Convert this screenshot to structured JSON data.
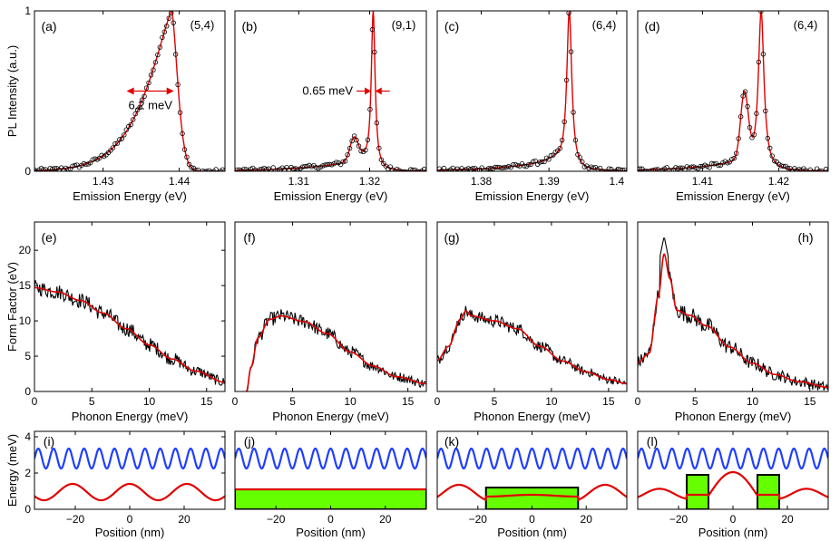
{
  "chart_data": [
    {
      "type": "scatter",
      "panel": "(a)",
      "chirality": "(5,4)",
      "xlabel": "Emission Energy (eV)",
      "ylabel": "PL Intensity (a.u.)",
      "xlim": [
        1.421,
        1.446
      ],
      "ylim": [
        0,
        1
      ],
      "xticks": [
        "1.43",
        "1.44"
      ],
      "xtick_values": [
        1.43,
        1.44
      ],
      "yticks": [
        "0",
        "1"
      ],
      "ytick_values": [
        0,
        1
      ],
      "peak": 1.439,
      "model": "asym",
      "wl": 0.0042,
      "wr": 0.0009,
      "annotation": "6.2 meV",
      "fwhm_range": [
        1.4331,
        1.4393
      ],
      "arrow_y": 0.5
    },
    {
      "type": "scatter",
      "panel": "(b)",
      "chirality": "(9,1)",
      "xlabel": "Emission Energy (eV)",
      "ylabel": "",
      "xlim": [
        1.301,
        1.328
      ],
      "ylim": [
        0,
        1
      ],
      "xticks": [
        "1.31",
        "1.32"
      ],
      "xtick_values": [
        1.31,
        1.32
      ],
      "yticks": [],
      "ytick_values": [],
      "peak": 1.3205,
      "model": "narrow",
      "w": 0.00033,
      "shoulder": {
        "e": 1.3178,
        "w": 0.0008,
        "a": 0.14
      },
      "annotation": "0.65 meV",
      "fwhm_range": [
        1.3202,
        1.3208
      ],
      "arrow_y": 0.5
    },
    {
      "type": "scatter",
      "panel": "(c)",
      "chirality": "(6,4)",
      "xlabel": "Emission Energy (eV)",
      "ylabel": "",
      "xlim": [
        1.3735,
        1.4015
      ],
      "ylim": [
        0,
        1
      ],
      "xticks": [
        "1.38",
        "1.39",
        "1.4"
      ],
      "xtick_values": [
        1.38,
        1.39,
        1.4
      ],
      "yticks": [],
      "ytick_values": [],
      "peak": 1.393,
      "model": "narrow",
      "w": 0.00045,
      "annotation": ""
    },
    {
      "type": "scatter",
      "panel": "(d)",
      "chirality": "(6,4)",
      "xlabel": "Emission Energy (eV)",
      "ylabel": "",
      "xlim": [
        1.4015,
        1.4265
      ],
      "ylim": [
        0,
        1
      ],
      "xticks": [
        "1.41",
        "1.42"
      ],
      "xtick_values": [
        1.41,
        1.42
      ],
      "yticks": [],
      "ytick_values": [],
      "peak": 1.4177,
      "model": "narrow",
      "w": 0.00045,
      "shoulder": {
        "e": 1.4155,
        "w": 0.0007,
        "a": 0.4
      },
      "annotation": ""
    },
    {
      "type": "line",
      "panel": "(e)",
      "xlabel": "Phonon Energy (meV)",
      "ylabel": "Form Factor (eV)",
      "xlim": [
        0,
        16.6
      ],
      "ylim": [
        0,
        24
      ],
      "xticks": [
        "0",
        "5",
        "10",
        "15"
      ],
      "xtick_values": [
        0,
        5,
        10,
        15
      ],
      "yticks": [
        "0",
        "5",
        "10",
        "15",
        "20"
      ],
      "ytick_values": [
        0,
        5,
        10,
        15,
        20
      ],
      "fit_points": [
        [
          0,
          14.7
        ],
        [
          2,
          14.1
        ],
        [
          4,
          12.9
        ],
        [
          6,
          11.1
        ],
        [
          8,
          8.9
        ],
        [
          10,
          6.6
        ],
        [
          12,
          4.6
        ],
        [
          14,
          2.9
        ],
        [
          16.6,
          1.3
        ]
      ],
      "noise": 1.1
    },
    {
      "type": "line",
      "panel": "(f)",
      "xlabel": "Phonon Energy (meV)",
      "ylabel": "",
      "xlim": [
        0,
        16.6
      ],
      "ylim": [
        0,
        24
      ],
      "xticks": [
        "0",
        "5",
        "10",
        "15"
      ],
      "xtick_values": [
        0,
        5,
        10,
        15
      ],
      "yticks": [],
      "ytick_values": [],
      "fit_points": [
        [
          1,
          0
        ],
        [
          1.4,
          3.5
        ],
        [
          2,
          7.6
        ],
        [
          3,
          10.2
        ],
        [
          4,
          10.7
        ],
        [
          6,
          9.9
        ],
        [
          8,
          8.2
        ],
        [
          10,
          5.6
        ],
        [
          12,
          3.6
        ],
        [
          14,
          2.1
        ],
        [
          16.6,
          1.1
        ]
      ],
      "noise": 1.0,
      "cutoff": 1
    },
    {
      "type": "line",
      "panel": "(g)",
      "xlabel": "Phonon Energy (meV)",
      "ylabel": "",
      "xlim": [
        0,
        16.6
      ],
      "ylim": [
        0,
        24
      ],
      "xticks": [
        "0",
        "5",
        "10",
        "15"
      ],
      "xtick_values": [
        0,
        5,
        10,
        15
      ],
      "yticks": [],
      "ytick_values": [],
      "fit_points": [
        [
          0,
          4.4
        ],
        [
          1,
          6.4
        ],
        [
          2,
          10.2
        ],
        [
          2.5,
          11.4
        ],
        [
          3,
          10.7
        ],
        [
          5,
          10
        ],
        [
          7,
          8.9
        ],
        [
          9,
          6.4
        ],
        [
          11,
          4.3
        ],
        [
          13,
          2.8
        ],
        [
          15,
          1.7
        ],
        [
          16.6,
          1.1
        ]
      ],
      "noise": 0.9
    },
    {
      "type": "line",
      "panel": "(h)",
      "xlabel": "Phonon Energy (meV)",
      "ylabel": "",
      "xlim": [
        0,
        16.6
      ],
      "ylim": [
        0,
        24
      ],
      "xticks": [
        "0",
        "5",
        "10",
        "15"
      ],
      "xtick_values": [
        0,
        5,
        10,
        15
      ],
      "yticks": [],
      "ytick_values": [],
      "fit_points": [
        [
          0,
          4.1
        ],
        [
          1,
          5.4
        ],
        [
          1.8,
          13.5
        ],
        [
          2.3,
          19.5
        ],
        [
          2.8,
          16
        ],
        [
          3.4,
          11.5
        ],
        [
          4.5,
          10.8
        ],
        [
          6,
          9.3
        ],
        [
          8,
          6.3
        ],
        [
          10,
          4
        ],
        [
          12,
          2.4
        ],
        [
          14,
          1.4
        ],
        [
          16.6,
          0.6
        ]
      ],
      "noise": 1.2,
      "spike": 22
    },
    {
      "type": "line",
      "panel": "(i)",
      "xlabel": "Position (nm)",
      "ylabel": "Energy (meV)",
      "xlim": [
        -35,
        35
      ],
      "ylim": [
        0,
        4.3
      ],
      "xticks": [
        "−20",
        "0",
        "20"
      ],
      "xtick_values": [
        -20,
        0,
        20
      ],
      "yticks": [
        "0",
        "2",
        "4"
      ],
      "ytick_values": [
        0,
        2,
        4
      ],
      "blue_wave": {
        "center": 2.8,
        "amp": 0.55,
        "period": 5.6
      },
      "red_wave": {
        "center": 0.95,
        "amp": 0.45,
        "period": 21
      },
      "wells": []
    },
    {
      "type": "line",
      "panel": "(j)",
      "xlabel": "Position (nm)",
      "ylabel": "",
      "xlim": [
        -35,
        35
      ],
      "ylim": [
        0,
        4.3
      ],
      "xticks": [
        "−20",
        "0",
        "20"
      ],
      "xtick_values": [
        -20,
        0,
        20
      ],
      "yticks": [],
      "ytick_values": [],
      "blue_wave": {
        "center": 2.8,
        "amp": 0.55,
        "period": 5.6
      },
      "red_wave": {
        "flat": 1.1
      },
      "wells": [
        {
          "x0": -35,
          "x1": 35,
          "h": 1.1
        }
      ]
    },
    {
      "type": "line",
      "panel": "(k)",
      "xlabel": "Position (nm)",
      "ylabel": "",
      "xlim": [
        -35,
        35
      ],
      "ylim": [
        0,
        4.3
      ],
      "xticks": [
        "−20",
        "0",
        "20"
      ],
      "xtick_values": [
        -20,
        0,
        20
      ],
      "yticks": [],
      "ytick_values": [],
      "blue_wave": {
        "center": 2.8,
        "amp": 0.55,
        "period": 5.6
      },
      "red_wave": {
        "profile": "k"
      },
      "wells": [
        {
          "x0": -17,
          "x1": 17,
          "h": 1.2
        }
      ]
    },
    {
      "type": "line",
      "panel": "(l)",
      "xlabel": "Position (nm)",
      "ylabel": "",
      "xlim": [
        -35,
        35
      ],
      "ylim": [
        0,
        4.3
      ],
      "xticks": [
        "−20",
        "0",
        "20"
      ],
      "xtick_values": [
        -20,
        0,
        20
      ],
      "yticks": [],
      "ytick_values": [],
      "blue_wave": {
        "center": 2.8,
        "amp": 0.55,
        "period": 5.6
      },
      "red_wave": {
        "profile": "l"
      },
      "wells": [
        {
          "x0": -17,
          "x1": -9,
          "h": 1.9
        },
        {
          "x0": 9,
          "x1": 17,
          "h": 1.9
        }
      ]
    }
  ],
  "colors": {
    "fit": "#e00000",
    "data": "#000000",
    "wave": "#1f3fff",
    "well": "#66ff00"
  }
}
